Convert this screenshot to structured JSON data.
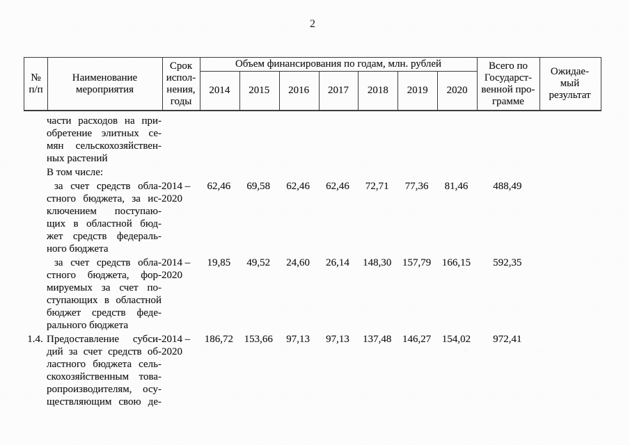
{
  "page": {
    "number": "2"
  },
  "colors": {
    "paper": "#fcfcfc",
    "ink": "#1d1d1d",
    "border": "#3a3a3a"
  },
  "table": {
    "header": {
      "col_num_lines": [
        "№",
        "п/п"
      ],
      "col_name_lines": [
        "Наименование",
        "мероприятия"
      ],
      "col_period_lines": [
        "Срок",
        "испол-",
        "нения,",
        "годы"
      ],
      "years_group_label": "Объем финансирования по годам, млн. рублей",
      "years": [
        "2014",
        "2015",
        "2016",
        "2017",
        "2018",
        "2019",
        "2020"
      ],
      "col_total_lines": [
        "Всего по",
        "Государст-",
        "венной про-",
        "грамме"
      ],
      "col_result_lines": [
        "Ожидае-",
        "мый",
        "результат"
      ]
    },
    "rows": [
      {
        "num": "",
        "name_lines": [
          "части расходов на при-",
          "обретение элитных се-",
          "мян сельскохозяйствен-",
          "ных растений"
        ],
        "first_indent": false,
        "justify": "except-last",
        "period_lines": [],
        "values": [],
        "total": "",
        "result": ""
      },
      {
        "num": "",
        "name_lines": [
          "В том числе:"
        ],
        "first_indent": false,
        "justify": "none",
        "period_lines": [],
        "values": [],
        "total": "",
        "result": ""
      },
      {
        "num": "",
        "name_lines": [
          "за счет средств обла-",
          "стного бюджета, за ис-",
          "ключением поступаю-",
          "щих в областной бюд-",
          "жет средств федераль-",
          "ного бюджета"
        ],
        "first_indent": true,
        "justify": "except-last",
        "period_lines": [
          "2014 –",
          "2020"
        ],
        "values": [
          "62,46",
          "69,58",
          "62,46",
          "62,46",
          "72,71",
          "77,36",
          "81,46"
        ],
        "total": "488,49",
        "result": ""
      },
      {
        "num": "",
        "name_lines": [
          "за счет средств обла-",
          "стного бюджета, фор-",
          "мируемых за счет по-",
          "ступающих в областной",
          "бюджет средств феде-",
          "рального бюджета"
        ],
        "first_indent": true,
        "justify": "except-last",
        "period_lines": [
          "2014 –",
          "2020"
        ],
        "values": [
          "19,85",
          "49,52",
          "24,60",
          "26,14",
          "148,30",
          "157,79",
          "166,15"
        ],
        "total": "592,35",
        "result": ""
      },
      {
        "num": "1.4.",
        "name_lines": [
          "Предоставление субси-",
          "дий за счет средств об-",
          "ластного бюджета сель-",
          "скохозяйственным това-",
          "ропроизводителям, осу-",
          "ществляющим свою де-"
        ],
        "first_indent": false,
        "justify": "all",
        "period_lines": [
          "2014 –",
          "2020"
        ],
        "values": [
          "186,72",
          "153,66",
          "97,13",
          "97,13",
          "137,48",
          "146,27",
          "154,02"
        ],
        "total": "972,41",
        "result": ""
      }
    ]
  }
}
